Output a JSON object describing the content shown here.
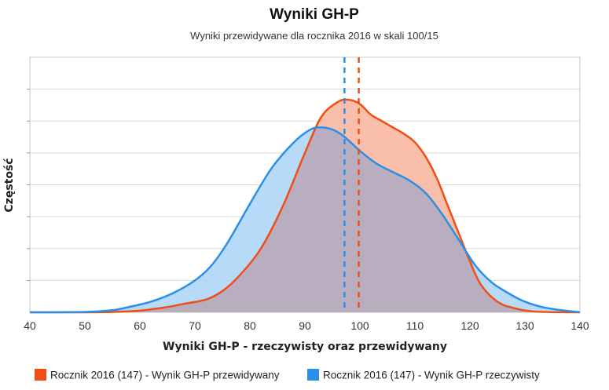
{
  "chart_data": {
    "type": "area",
    "title": "Wyniki GH-P",
    "subtitle": "Wyniki przewidywane dla rocznika 2016 w skali 100/15",
    "xlabel": "Wyniki GH-P - rzeczywisty oraz przewidywany",
    "ylabel": "Częstość",
    "xlim": [
      40,
      140
    ],
    "x_ticks": [
      40,
      50,
      60,
      70,
      80,
      90,
      100,
      110,
      120,
      130,
      140
    ],
    "x_tick_labels": [
      "40",
      "50",
      "60",
      "70",
      "80",
      "90",
      "100",
      "110",
      "120",
      "130",
      "140"
    ],
    "y_tick_labels_shown": false,
    "grid": true,
    "legend_position": "bottom",
    "series": [
      {
        "name": "Rocznik 2016 (147) - Wynik GH-P przewidywany",
        "color": "#f04e14",
        "fill": "#f8b49b",
        "x": [
          40,
          50,
          55,
          60,
          65,
          68,
          72,
          75,
          78,
          82,
          86,
          90,
          93,
          96,
          98,
          100,
          102,
          104,
          106,
          108,
          110,
          112,
          114,
          116,
          118,
          120,
          122,
          125,
          128,
          132,
          140
        ],
        "values": [
          0,
          0,
          0.002,
          0.008,
          0.025,
          0.04,
          0.06,
          0.1,
          0.17,
          0.3,
          0.5,
          0.75,
          0.92,
          0.99,
          1.0,
          0.98,
          0.93,
          0.9,
          0.87,
          0.84,
          0.8,
          0.73,
          0.63,
          0.5,
          0.37,
          0.24,
          0.13,
          0.05,
          0.02,
          0.003,
          0
        ],
        "mean_line": 99.8
      },
      {
        "name": "Rocznik 2016 (147) - Wynik GH-P rzeczywisty",
        "color": "#2a8fe8",
        "fill": "#a9d3f6",
        "x": [
          40,
          50,
          55,
          58,
          62,
          66,
          70,
          73,
          76,
          80,
          84,
          88,
          91,
          93,
          95,
          97,
          100,
          103,
          106,
          109,
          112,
          115,
          118,
          121,
          124,
          127,
          130,
          134,
          140
        ],
        "values": [
          0,
          0.002,
          0.01,
          0.025,
          0.05,
          0.09,
          0.15,
          0.22,
          0.33,
          0.51,
          0.68,
          0.8,
          0.86,
          0.87,
          0.86,
          0.83,
          0.76,
          0.7,
          0.66,
          0.62,
          0.56,
          0.46,
          0.34,
          0.22,
          0.14,
          0.09,
          0.05,
          0.02,
          0
        ],
        "mean_line": 97.2
      }
    ]
  }
}
